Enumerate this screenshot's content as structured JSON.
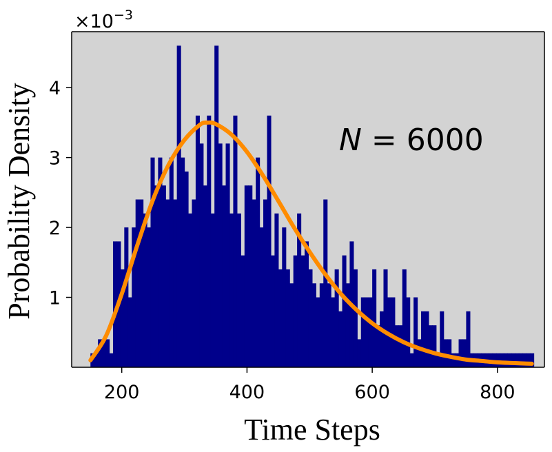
{
  "chart_data": {
    "type": "bar",
    "title": "",
    "xlabel": "Time Steps",
    "ylabel": "Probability Density",
    "y_multiplier": {
      "base": "×10",
      "exponent": "−3"
    },
    "annotation": {
      "var": "N",
      "rest": " = 6000"
    },
    "xlim": [
      120,
      875
    ],
    "ylim": [
      0,
      4.8
    ],
    "xticks": [
      200,
      400,
      600,
      800
    ],
    "yticks": [
      1,
      2,
      3,
      4
    ],
    "grid": false,
    "legend": "none",
    "colors": {
      "bars": "#00008b",
      "curve": "#ff8c00",
      "background": "#d3d3d3"
    },
    "bins": {
      "x_start": 150,
      "bin_width": 6,
      "values": [
        0.2,
        0.2,
        0.4,
        0.4,
        0.4,
        0.2,
        1.8,
        1.8,
        1.4,
        2.0,
        1.0,
        2.0,
        2.4,
        2.4,
        2.2,
        2.0,
        3.0,
        2.6,
        3.0,
        2.6,
        2.4,
        3.0,
        2.4,
        4.6,
        3.0,
        2.8,
        2.2,
        2.4,
        3.6,
        3.2,
        2.6,
        3.6,
        2.2,
        4.6,
        3.2,
        2.6,
        3.2,
        2.2,
        3.6,
        2.2,
        1.6,
        2.6,
        2.6,
        2.4,
        3.0,
        2.0,
        2.4,
        3.6,
        1.6,
        2.2,
        1.4,
        2.0,
        1.4,
        1.2,
        1.6,
        2.2,
        1.6,
        1.8,
        1.4,
        1.2,
        1.0,
        1.2,
        2.4,
        1.2,
        1.0,
        1.4,
        0.8,
        1.6,
        1.2,
        1.8,
        1.4,
        0.4,
        1.0,
        1.0,
        1.0,
        1.4,
        0.6,
        0.8,
        1.4,
        1.0,
        1.0,
        0.6,
        0.6,
        1.4,
        1.0,
        0.2,
        1.0,
        0.4,
        0.8,
        0.8,
        0.6,
        0.6,
        0.2,
        0.8,
        0.4,
        0.4,
        0.2,
        0.2,
        0.4,
        0.4,
        0.8,
        0.2,
        0.2,
        0.2,
        0.2,
        0.2,
        0.2,
        0.2,
        0.2,
        0.2,
        0.2,
        0.2,
        0.2,
        0.2,
        0.2,
        0.2,
        0.2,
        0.2
      ]
    },
    "fit_curve": {
      "name": "",
      "x": [
        150,
        175,
        200,
        225,
        250,
        275,
        300,
        325,
        337,
        350,
        375,
        400,
        425,
        450,
        475,
        500,
        525,
        550,
        575,
        600,
        625,
        650,
        675,
        700,
        725,
        750,
        775,
        800,
        825,
        855
      ],
      "y": [
        0.1,
        0.45,
        1.05,
        1.75,
        2.4,
        2.9,
        3.25,
        3.47,
        3.5,
        3.48,
        3.33,
        3.08,
        2.75,
        2.38,
        2.0,
        1.65,
        1.33,
        1.05,
        0.82,
        0.63,
        0.48,
        0.36,
        0.27,
        0.2,
        0.15,
        0.11,
        0.09,
        0.07,
        0.06,
        0.05
      ]
    }
  }
}
